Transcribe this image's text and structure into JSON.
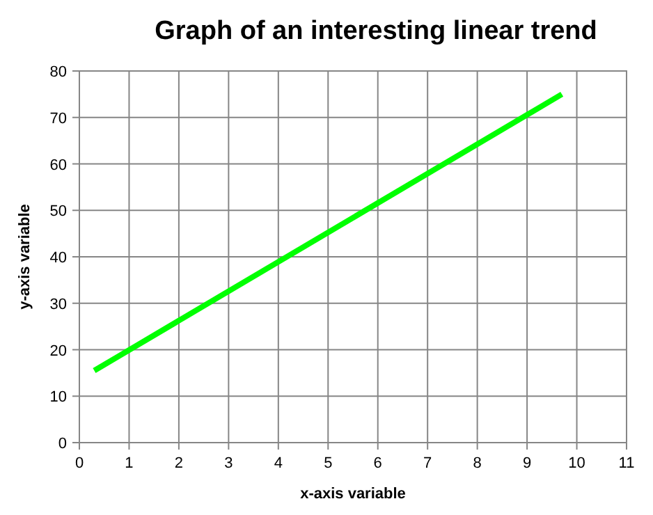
{
  "chart_data": {
    "type": "line",
    "title": "Graph of an interesting linear trend",
    "xlabel": "x-axis variable",
    "ylabel": "y-axis variable",
    "series": [
      {
        "color": "#00ff00",
        "x": [
          0.3,
          9.7
        ],
        "values": [
          15.5,
          75
        ]
      }
    ],
    "xlim": [
      0,
      11
    ],
    "xticks": [
      0,
      1,
      2,
      3,
      4,
      5,
      6,
      7,
      8,
      9,
      10,
      11
    ],
    "ylim": [
      0,
      80
    ],
    "yticks": [
      0,
      10,
      20,
      30,
      40,
      50,
      60,
      70,
      80
    ],
    "grid": true,
    "marker": "none",
    "line_style": "solid"
  }
}
